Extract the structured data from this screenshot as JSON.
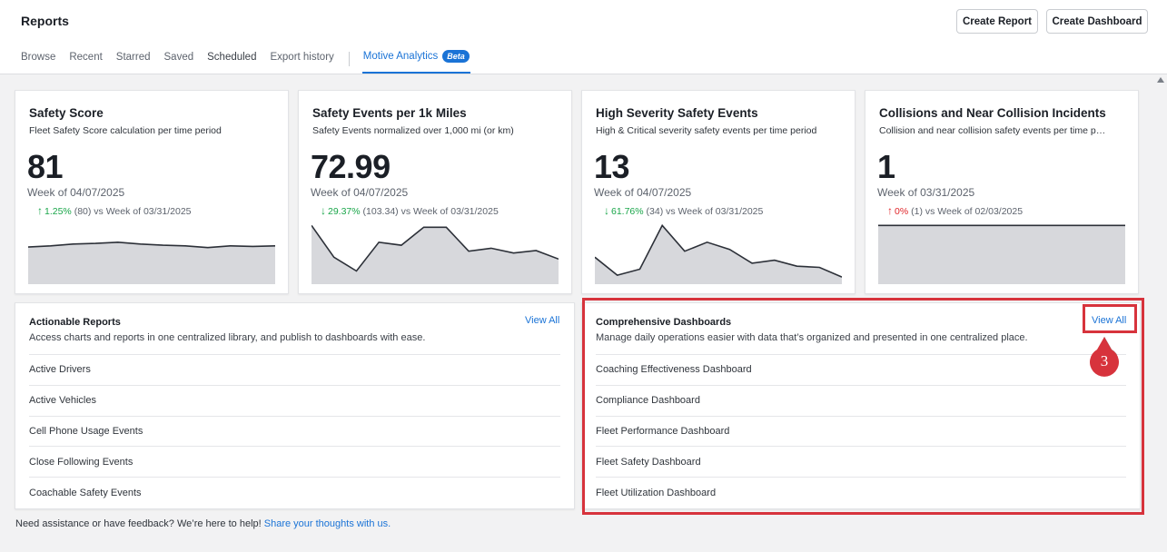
{
  "header": {
    "title": "Reports",
    "create_report": "Create Report",
    "create_dashboard": "Create Dashboard"
  },
  "tabs": [
    "Browse",
    "Recent",
    "Starred",
    "Saved",
    "Scheduled",
    "Export history"
  ],
  "active_tab": {
    "label": "Motive Analytics",
    "badge": "Beta"
  },
  "metrics": [
    {
      "title": "Safety Score",
      "subtitle": "Fleet Safety Score calculation per time period",
      "value": "81",
      "week": "Week of 04/07/2025",
      "direction": "up",
      "pct": "1.25%",
      "change_text": "(80) vs Week of 03/31/2025",
      "pct_color": "#1aa64a",
      "sparkline": [
        0.38,
        0.36,
        0.33,
        0.32,
        0.3,
        0.33,
        0.35,
        0.36,
        0.39,
        0.36,
        0.37,
        0.36
      ]
    },
    {
      "title": "Safety Events per 1k Miles",
      "subtitle": "Safety Events normalized over 1,000 mi (or km)",
      "value": "72.99",
      "week": "Week of 04/07/2025",
      "direction": "down",
      "pct": "29.37%",
      "change_text": "(103.34) vs Week of 03/31/2025",
      "pct_color": "#1aa64a",
      "sparkline": [
        0.02,
        0.55,
        0.78,
        0.3,
        0.35,
        0.05,
        0.05,
        0.45,
        0.4,
        0.48,
        0.44,
        0.58
      ]
    },
    {
      "title": "High Severity Safety Events",
      "subtitle": "High & Critical severity safety events per time period",
      "value": "13",
      "week": "Week of 04/07/2025",
      "direction": "down",
      "pct": "61.76%",
      "change_text": "(34) vs Week of 03/31/2025",
      "pct_color": "#1aa64a",
      "sparkline": [
        0.55,
        0.85,
        0.75,
        0.02,
        0.45,
        0.3,
        0.42,
        0.65,
        0.6,
        0.7,
        0.72,
        0.88
      ]
    },
    {
      "title": "Collisions and Near Collision Incidents",
      "subtitle": "Collision and near collision safety events per time period",
      "value": "1",
      "week": "Week of 03/31/2025",
      "direction": "up",
      "pct": "0%",
      "change_text": "(1) vs Week of 02/03/2025",
      "pct_color": "#e0262a",
      "sparkline": [
        0.02,
        0.02,
        0.02,
        0.02,
        0.02,
        0.02,
        0.02,
        0.02,
        0.02,
        0.02,
        0.02,
        0.02
      ]
    }
  ],
  "actionable_reports": {
    "title": "Actionable Reports",
    "description": "Access charts and reports in one centralized library, and publish to dashboards with ease.",
    "view_all": "View All",
    "items": [
      "Active Drivers",
      "Active Vehicles",
      "Cell Phone Usage Events",
      "Close Following Events",
      "Coachable Safety Events"
    ]
  },
  "comprehensive_dashboards": {
    "title": "Comprehensive Dashboards",
    "description": "Manage daily operations easier with data that’s organized and presented in one centralized place.",
    "view_all": "View All",
    "items": [
      "Coaching Effectiveness Dashboard",
      "Compliance Dashboard",
      "Fleet Performance Dashboard",
      "Fleet Safety Dashboard",
      "Fleet Utilization Dashboard"
    ]
  },
  "callout": {
    "number": "3",
    "color": "#d7333c"
  },
  "footer": {
    "text": "Need assistance or have feedback? We’re here to help! ",
    "link": "Share your thoughts with us."
  }
}
